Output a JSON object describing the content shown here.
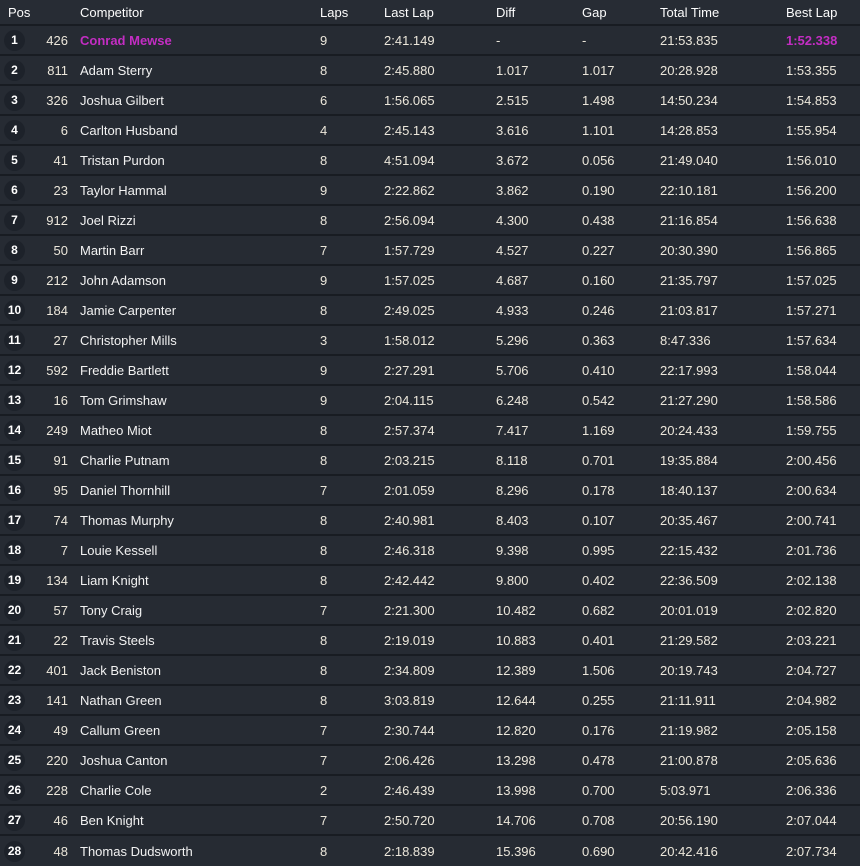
{
  "colors": {
    "accent": "#c32dc3",
    "header_bg": "#272c34",
    "row_bg": "#262b33",
    "separator": "#181c22",
    "pos_circle": "#1d222a",
    "header_text": "#fdfdfd",
    "name_text": "#f2f2f2",
    "value_text": "#ece7db"
  },
  "table": {
    "columns": [
      {
        "key": "pos",
        "label": "Pos"
      },
      {
        "key": "num",
        "label": ""
      },
      {
        "key": "name",
        "label": "Competitor"
      },
      {
        "key": "laps",
        "label": "Laps"
      },
      {
        "key": "last_lap",
        "label": "Last Lap"
      },
      {
        "key": "diff",
        "label": "Diff"
      },
      {
        "key": "gap",
        "label": "Gap"
      },
      {
        "key": "total_time",
        "label": "Total Time"
      },
      {
        "key": "best_lap",
        "label": "Best Lap"
      }
    ],
    "rows": [
      {
        "pos": "1",
        "num": "426",
        "name": "Conrad Mewse",
        "laps": "9",
        "last_lap": "2:41.149",
        "diff": "-",
        "gap": "-",
        "total_time": "21:53.835",
        "best_lap": "1:52.338",
        "highlight_name": true,
        "highlight_best": true
      },
      {
        "pos": "2",
        "num": "811",
        "name": "Adam Sterry",
        "laps": "8",
        "last_lap": "2:45.880",
        "diff": "1.017",
        "gap": "1.017",
        "total_time": "20:28.928",
        "best_lap": "1:53.355"
      },
      {
        "pos": "3",
        "num": "326",
        "name": "Joshua Gilbert",
        "laps": "6",
        "last_lap": "1:56.065",
        "diff": "2.515",
        "gap": "1.498",
        "total_time": "14:50.234",
        "best_lap": "1:54.853"
      },
      {
        "pos": "4",
        "num": "6",
        "name": "Carlton Husband",
        "laps": "4",
        "last_lap": "2:45.143",
        "diff": "3.616",
        "gap": "1.101",
        "total_time": "14:28.853",
        "best_lap": "1:55.954"
      },
      {
        "pos": "5",
        "num": "41",
        "name": "Tristan Purdon",
        "laps": "8",
        "last_lap": "4:51.094",
        "diff": "3.672",
        "gap": "0.056",
        "total_time": "21:49.040",
        "best_lap": "1:56.010"
      },
      {
        "pos": "6",
        "num": "23",
        "name": "Taylor Hammal",
        "laps": "9",
        "last_lap": "2:22.862",
        "diff": "3.862",
        "gap": "0.190",
        "total_time": "22:10.181",
        "best_lap": "1:56.200"
      },
      {
        "pos": "7",
        "num": "912",
        "name": "Joel Rizzi",
        "laps": "8",
        "last_lap": "2:56.094",
        "diff": "4.300",
        "gap": "0.438",
        "total_time": "21:16.854",
        "best_lap": "1:56.638"
      },
      {
        "pos": "8",
        "num": "50",
        "name": "Martin Barr",
        "laps": "7",
        "last_lap": "1:57.729",
        "diff": "4.527",
        "gap": "0.227",
        "total_time": "20:30.390",
        "best_lap": "1:56.865"
      },
      {
        "pos": "9",
        "num": "212",
        "name": "John Adamson",
        "laps": "9",
        "last_lap": "1:57.025",
        "diff": "4.687",
        "gap": "0.160",
        "total_time": "21:35.797",
        "best_lap": "1:57.025"
      },
      {
        "pos": "10",
        "num": "184",
        "name": "Jamie Carpenter",
        "laps": "8",
        "last_lap": "2:49.025",
        "diff": "4.933",
        "gap": "0.246",
        "total_time": "21:03.817",
        "best_lap": "1:57.271"
      },
      {
        "pos": "11",
        "num": "27",
        "name": "Christopher Mills",
        "laps": "3",
        "last_lap": "1:58.012",
        "diff": "5.296",
        "gap": "0.363",
        "total_time": "8:47.336",
        "best_lap": "1:57.634"
      },
      {
        "pos": "12",
        "num": "592",
        "name": "Freddie Bartlett",
        "laps": "9",
        "last_lap": "2:27.291",
        "diff": "5.706",
        "gap": "0.410",
        "total_time": "22:17.993",
        "best_lap": "1:58.044"
      },
      {
        "pos": "13",
        "num": "16",
        "name": "Tom Grimshaw",
        "laps": "9",
        "last_lap": "2:04.115",
        "diff": "6.248",
        "gap": "0.542",
        "total_time": "21:27.290",
        "best_lap": "1:58.586"
      },
      {
        "pos": "14",
        "num": "249",
        "name": "Matheo Miot",
        "laps": "8",
        "last_lap": "2:57.374",
        "diff": "7.417",
        "gap": "1.169",
        "total_time": "20:24.433",
        "best_lap": "1:59.755"
      },
      {
        "pos": "15",
        "num": "91",
        "name": "Charlie Putnam",
        "laps": "8",
        "last_lap": "2:03.215",
        "diff": "8.118",
        "gap": "0.701",
        "total_time": "19:35.884",
        "best_lap": "2:00.456"
      },
      {
        "pos": "16",
        "num": "95",
        "name": "Daniel Thornhill",
        "laps": "7",
        "last_lap": "2:01.059",
        "diff": "8.296",
        "gap": "0.178",
        "total_time": "18:40.137",
        "best_lap": "2:00.634"
      },
      {
        "pos": "17",
        "num": "74",
        "name": "Thomas Murphy",
        "laps": "8",
        "last_lap": "2:40.981",
        "diff": "8.403",
        "gap": "0.107",
        "total_time": "20:35.467",
        "best_lap": "2:00.741"
      },
      {
        "pos": "18",
        "num": "7",
        "name": "Louie Kessell",
        "laps": "8",
        "last_lap": "2:46.318",
        "diff": "9.398",
        "gap": "0.995",
        "total_time": "22:15.432",
        "best_lap": "2:01.736"
      },
      {
        "pos": "19",
        "num": "134",
        "name": "Liam Knight",
        "laps": "8",
        "last_lap": "2:42.442",
        "diff": "9.800",
        "gap": "0.402",
        "total_time": "22:36.509",
        "best_lap": "2:02.138"
      },
      {
        "pos": "20",
        "num": "57",
        "name": "Tony Craig",
        "laps": "7",
        "last_lap": "2:21.300",
        "diff": "10.482",
        "gap": "0.682",
        "total_time": "20:01.019",
        "best_lap": "2:02.820"
      },
      {
        "pos": "21",
        "num": "22",
        "name": "Travis Steels",
        "laps": "8",
        "last_lap": "2:19.019",
        "diff": "10.883",
        "gap": "0.401",
        "total_time": "21:29.582",
        "best_lap": "2:03.221"
      },
      {
        "pos": "22",
        "num": "401",
        "name": "Jack Beniston",
        "laps": "8",
        "last_lap": "2:34.809",
        "diff": "12.389",
        "gap": "1.506",
        "total_time": "20:19.743",
        "best_lap": "2:04.727"
      },
      {
        "pos": "23",
        "num": "141",
        "name": "Nathan Green",
        "laps": "8",
        "last_lap": "3:03.819",
        "diff": "12.644",
        "gap": "0.255",
        "total_time": "21:11.911",
        "best_lap": "2:04.982"
      },
      {
        "pos": "24",
        "num": "49",
        "name": "Callum Green",
        "laps": "7",
        "last_lap": "2:30.744",
        "diff": "12.820",
        "gap": "0.176",
        "total_time": "21:19.982",
        "best_lap": "2:05.158"
      },
      {
        "pos": "25",
        "num": "220",
        "name": "Joshua Canton",
        "laps": "7",
        "last_lap": "2:06.426",
        "diff": "13.298",
        "gap": "0.478",
        "total_time": "21:00.878",
        "best_lap": "2:05.636"
      },
      {
        "pos": "26",
        "num": "228",
        "name": "Charlie Cole",
        "laps": "2",
        "last_lap": "2:46.439",
        "diff": "13.998",
        "gap": "0.700",
        "total_time": "5:03.971",
        "best_lap": "2:06.336"
      },
      {
        "pos": "27",
        "num": "46",
        "name": "Ben Knight",
        "laps": "7",
        "last_lap": "2:50.720",
        "diff": "14.706",
        "gap": "0.708",
        "total_time": "20:56.190",
        "best_lap": "2:07.044"
      },
      {
        "pos": "28",
        "num": "48",
        "name": "Thomas Dudsworth",
        "laps": "8",
        "last_lap": "2:18.839",
        "diff": "15.396",
        "gap": "0.690",
        "total_time": "20:42.416",
        "best_lap": "2:07.734"
      }
    ]
  }
}
